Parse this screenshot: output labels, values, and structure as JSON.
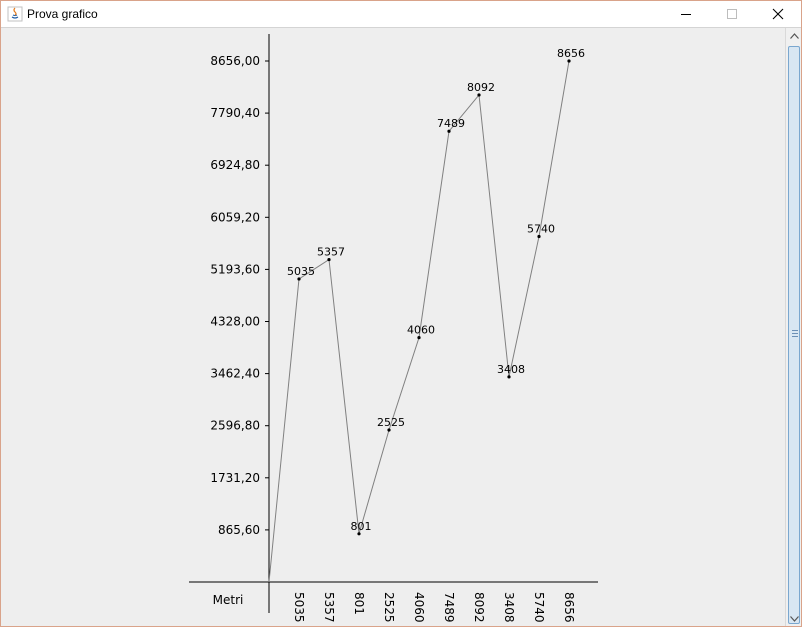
{
  "window": {
    "title": "Prova grafico",
    "controls": [
      "minimize",
      "maximize",
      "close"
    ]
  },
  "chart_data": {
    "type": "line",
    "x": [
      "5035",
      "5357",
      "801",
      "2525",
      "4060",
      "7489",
      "8092",
      "3408",
      "5740",
      "8656"
    ],
    "values": [
      5035,
      5357,
      801,
      2525,
      4060,
      7489,
      8092,
      3408,
      5740,
      8656
    ],
    "xlabel": "Metri",
    "ylabel": "",
    "ylim": [
      0,
      8656
    ],
    "yticks": [
      "865,60",
      "1731,20",
      "2596,80",
      "3462,40",
      "4328,00",
      "5193,60",
      "6059,20",
      "6924,80",
      "7790,40",
      "8656,00"
    ],
    "data_labels": [
      "5035",
      "5357",
      "801",
      "2525",
      "4060",
      "7489",
      "8092",
      "3408",
      "5740",
      "8656"
    ],
    "grid": false,
    "line_color": "#808080",
    "axis_color": "#000000"
  }
}
